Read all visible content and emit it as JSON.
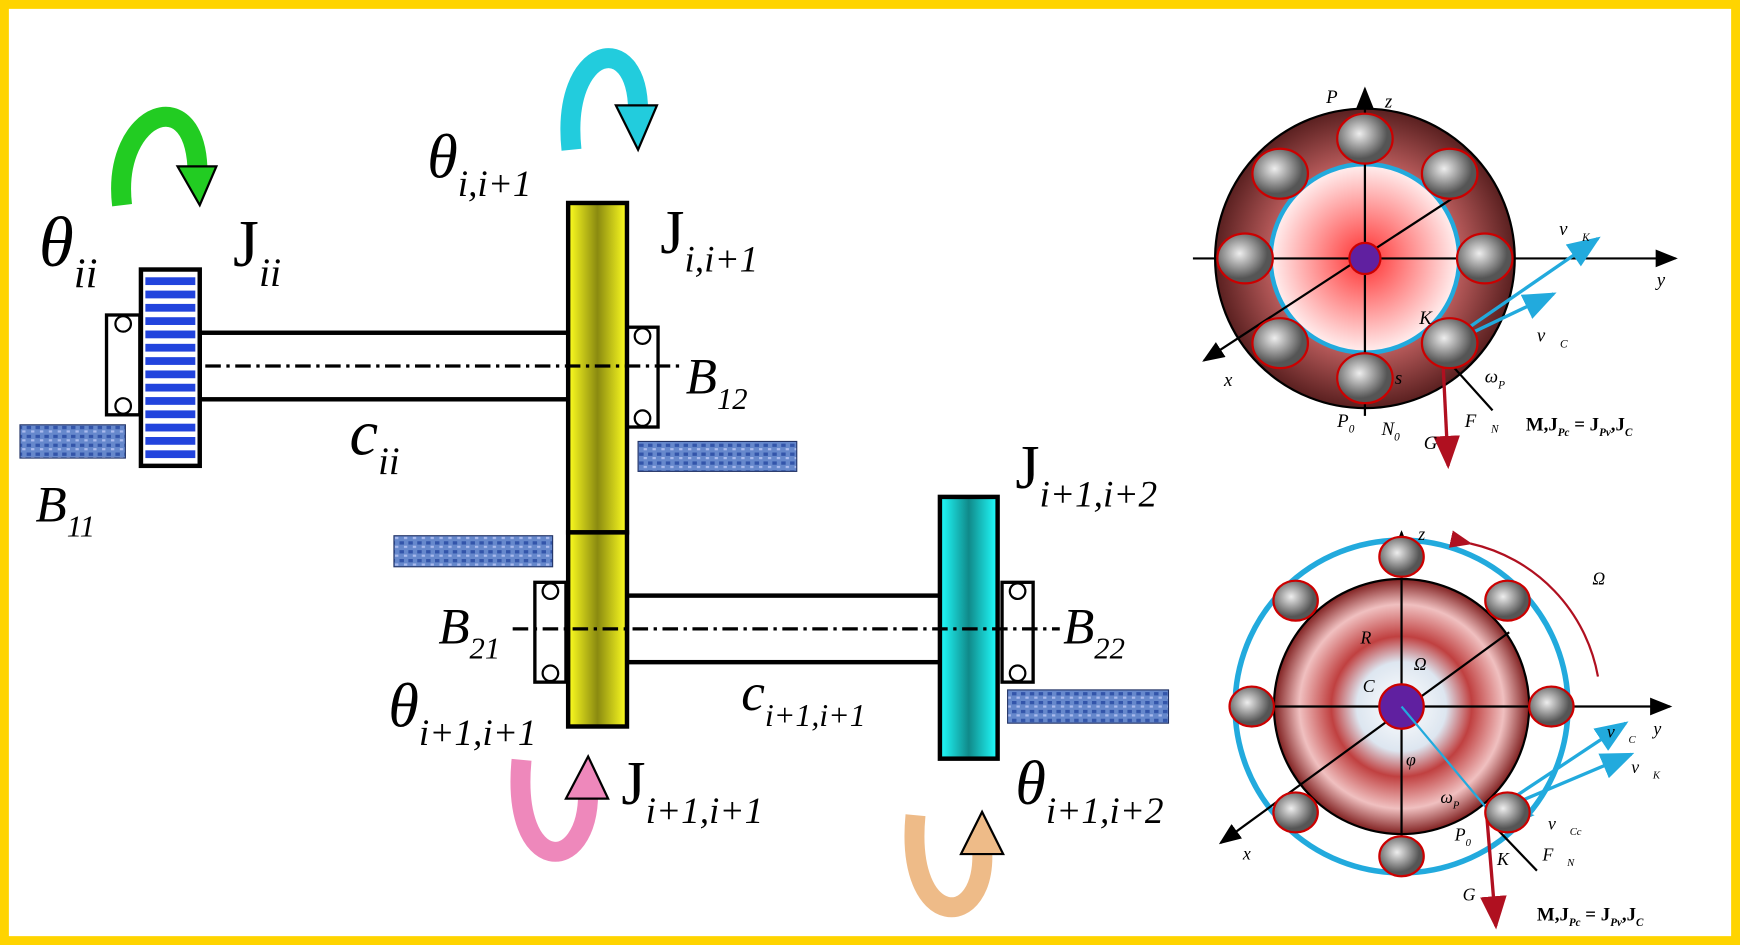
{
  "left": {
    "labels": [
      {
        "main": "θ",
        "sub": "ii"
      },
      {
        "main": "J",
        "sub": "ii"
      },
      {
        "main": "θ",
        "sub": "i,i+1"
      },
      {
        "main": "J",
        "sub": "i,i+1"
      },
      {
        "main": "B",
        "sub": "12"
      },
      {
        "main": "c",
        "sub": "ii"
      },
      {
        "main": "B",
        "sub": "11"
      },
      {
        "main": "J",
        "sub": "i+1,i+2"
      },
      {
        "main": "B",
        "sub": "21"
      },
      {
        "main": "B",
        "sub": "22"
      },
      {
        "main": "θ",
        "sub": "i+1,i+1"
      },
      {
        "main": "c",
        "sub": "i+1,i+1"
      },
      {
        "main": "J",
        "sub": "i+1,i+1"
      },
      {
        "main": "θ",
        "sub": "i+1,i+2"
      }
    ]
  },
  "top_right": {
    "labels": [
      {
        "main": "P"
      },
      {
        "main": "z"
      },
      {
        "main": "v⃗",
        "sub": "K"
      },
      {
        "main": "y"
      },
      {
        "main": "K"
      },
      {
        "main": "v⃗",
        "sub": "C"
      },
      {
        "main": "x"
      },
      {
        "main": "s"
      },
      {
        "main": "ω",
        "sub": "P"
      },
      {
        "main": "P",
        "sub": "0"
      },
      {
        "main": "N",
        "sub": "0"
      },
      {
        "main": "F⃗",
        "sub": "N"
      },
      {
        "main": "G⃗"
      }
    ],
    "formula": [
      {
        "t": "M,J"
      },
      {
        "sub": "Pc"
      },
      {
        "t": " = J"
      },
      {
        "sub": "Pv"
      },
      {
        "t": ",J"
      },
      {
        "sub": "C"
      }
    ]
  },
  "bottom_right": {
    "labels": [
      {
        "main": "z"
      },
      {
        "main": "Ω"
      },
      {
        "main": "R"
      },
      {
        "main": "Ω"
      },
      {
        "main": "C"
      },
      {
        "main": "y"
      },
      {
        "main": "v⃗",
        "sub": "C"
      },
      {
        "main": "v⃗",
        "sub": "K"
      },
      {
        "main": "φ"
      },
      {
        "main": "ω",
        "sub": "P"
      },
      {
        "main": "x"
      },
      {
        "main": "P",
        "sub": "0"
      },
      {
        "main": "v⃗",
        "sub": "Cc"
      },
      {
        "main": "K"
      },
      {
        "main": "F⃗",
        "sub": "N"
      },
      {
        "main": "G⃗"
      }
    ],
    "formula": [
      {
        "t": "M,J"
      },
      {
        "sub": "Pc"
      },
      {
        "t": " = J"
      },
      {
        "sub": "Pv"
      },
      {
        "t": ",J"
      },
      {
        "sub": "C"
      }
    ]
  }
}
